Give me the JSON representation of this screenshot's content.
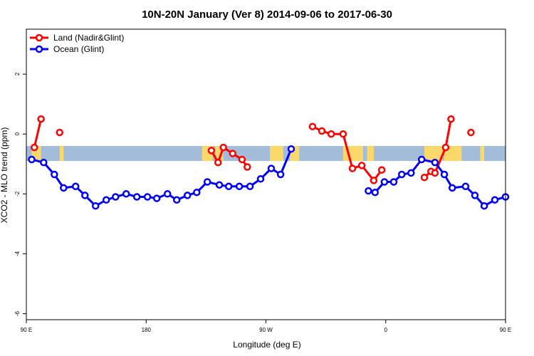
{
  "chart_data": {
    "type": "line",
    "title": "10N-20N January (Ver 8)   2014-09-06 to 2017-06-30",
    "xlabel": "Longitude (deg E)",
    "ylabel": "XCO2 - MLO trend (ppm)",
    "x_ticks": [
      "90 E",
      "180",
      "90 W",
      "0",
      "90 E",
      "180"
    ],
    "y_ticks": [
      "-6",
      "-4",
      "-2",
      "0",
      "2"
    ],
    "x_range": [
      90,
      450
    ],
    "ylim": [
      -6.2,
      3.5
    ],
    "legend_position": "top-left",
    "background_band": {
      "y_range": [
        -0.9,
        -0.4
      ],
      "ocean_color": "#a3bcd9",
      "land_color": "#fbd86a"
    },
    "land_segments": [
      [
        94,
        101
      ],
      [
        115,
        118
      ],
      [
        222,
        230
      ],
      [
        232,
        238
      ],
      [
        273,
        283
      ],
      [
        288,
        295
      ],
      [
        328,
        343
      ],
      [
        346,
        351
      ],
      [
        389,
        403
      ],
      [
        404,
        417
      ],
      [
        431,
        434
      ]
    ],
    "series": [
      {
        "name": "Land (Nadir&Glint)",
        "color": "#ff0000",
        "segments": [
          [
            [
              96,
              -0.45
            ],
            [
              101,
              0.5
            ]
          ],
          [
            [
              115,
              0.05
            ]
          ],
          [
            [
              229,
              -0.55
            ],
            [
              234,
              -0.95
            ],
            [
              238,
              -0.45
            ],
            [
              245,
              -0.65
            ],
            [
              252,
              -0.85
            ],
            [
              256,
              -1.1
            ]
          ],
          [
            [
              305,
              0.25
            ],
            [
              312,
              0.1
            ],
            [
              319,
              0.0
            ],
            [
              328,
              0.0
            ],
            [
              335,
              -1.15
            ],
            [
              342,
              -1.05
            ],
            [
              351,
              -1.55
            ],
            [
              357,
              -1.2
            ]
          ],
          [
            [
              389,
              -1.45
            ],
            [
              394,
              -1.25
            ],
            [
              397,
              -1.3
            ],
            [
              405,
              -0.45
            ],
            [
              409,
              0.5
            ]
          ],
          [
            [
              424,
              0.05
            ]
          ]
        ]
      },
      {
        "name": "Ocean (Glint)",
        "color": "#0000ff",
        "segments": [
          [
            [
              94,
              -0.85
            ],
            [
              103,
              -0.95
            ],
            [
              111,
              -1.35
            ],
            [
              118,
              -1.8
            ],
            [
              127,
              -1.75
            ],
            [
              134,
              -2.05
            ],
            [
              142,
              -2.4
            ],
            [
              150,
              -2.2
            ],
            [
              157,
              -2.1
            ],
            [
              165,
              -2.0
            ],
            [
              173,
              -2.1
            ],
            [
              181,
              -2.1
            ],
            [
              188,
              -2.15
            ],
            [
              196,
              -2.0
            ],
            [
              203,
              -2.2
            ],
            [
              211,
              -2.05
            ],
            [
              218,
              -1.95
            ],
            [
              226,
              -1.6
            ],
            [
              235,
              -1.7
            ],
            [
              242,
              -1.75
            ],
            [
              250,
              -1.75
            ],
            [
              258,
              -1.75
            ],
            [
              266,
              -1.5
            ],
            [
              274,
              -1.15
            ],
            [
              281,
              -1.35
            ],
            [
              289,
              -0.5
            ]
          ],
          [
            [
              347,
              -1.9
            ],
            [
              352,
              -1.95
            ],
            [
              359,
              -1.6
            ],
            [
              366,
              -1.6
            ],
            [
              372,
              -1.35
            ],
            [
              379,
              -1.3
            ],
            [
              387,
              -0.85
            ],
            [
              397,
              -0.95
            ],
            [
              404,
              -1.35
            ],
            [
              410,
              -1.8
            ],
            [
              420,
              -1.75
            ],
            [
              427,
              -2.05
            ],
            [
              434,
              -2.4
            ],
            [
              442,
              -2.2
            ],
            [
              450,
              -2.1
            ]
          ]
        ]
      }
    ]
  }
}
